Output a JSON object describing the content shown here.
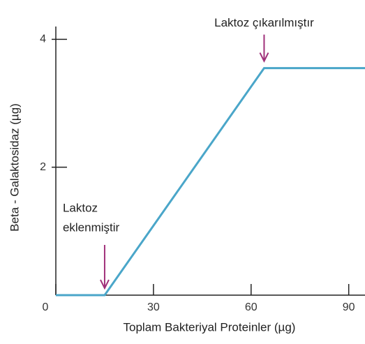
{
  "chart_data": {
    "type": "line",
    "x_label": "Toplam Bakteriyal Proteinler (µg)",
    "y_label": "Beta - Galaktosidaz (µg)",
    "series": [
      {
        "name": "Beta - Galaktosidaz",
        "color": "#4aa6c9",
        "x": [
          0,
          15,
          64,
          95
        ],
        "values": [
          0,
          0,
          3.55,
          3.55
        ]
      }
    ],
    "xlim": [
      0,
      95
    ],
    "xticks": [
      0,
      30,
      60,
      90
    ],
    "ylim": [
      0,
      4.2
    ],
    "yticks": [
      2,
      4
    ],
    "annotations": [
      {
        "lines": [
          "Laktoz",
          "eklenmiştir"
        ],
        "x": 15,
        "y": 0
      },
      {
        "lines": [
          "Laktoz çıkarılmıştır"
        ],
        "x": 64,
        "y": 3.55
      }
    ]
  }
}
